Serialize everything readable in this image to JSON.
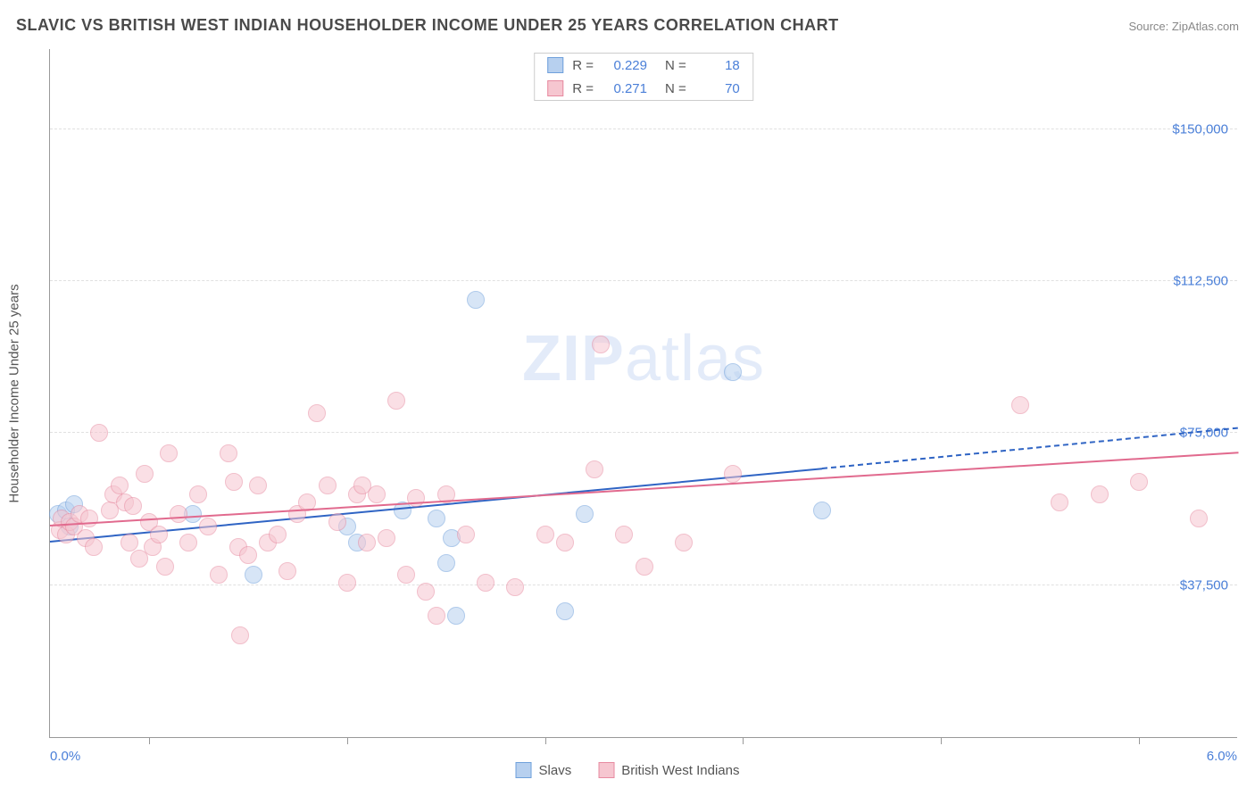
{
  "title": "SLAVIC VS BRITISH WEST INDIAN HOUSEHOLDER INCOME UNDER 25 YEARS CORRELATION CHART",
  "source": "Source: ZipAtlas.com",
  "watermark_bold": "ZIP",
  "watermark_light": "atlas",
  "ylabel": "Householder Income Under 25 years",
  "chart": {
    "type": "scatter",
    "background_color": "#ffffff",
    "grid_color": "#e0e0e0",
    "axis_color": "#999999",
    "text_color": "#555555",
    "value_color": "#4a7fd8",
    "xlim": [
      0.0,
      6.0
    ],
    "x_start_label": "0.0%",
    "x_end_label": "6.0%",
    "x_ticks": [
      0.5,
      1.5,
      2.5,
      3.5,
      4.5,
      5.5
    ],
    "ylim": [
      0,
      170000
    ],
    "y_gridlines": [
      {
        "value": 37500,
        "label": "$37,500"
      },
      {
        "value": 75000,
        "label": "$75,000"
      },
      {
        "value": 112500,
        "label": "$112,500"
      },
      {
        "value": 150000,
        "label": "$150,000"
      }
    ],
    "marker_radius": 10,
    "marker_opacity": 0.55,
    "series": [
      {
        "key": "slavs",
        "label": "Slavs",
        "fill": "#b7d0ef",
        "stroke": "#6fa0db",
        "line_color": "#2f64c4",
        "R": "0.229",
        "N": "18",
        "trend": {
          "x1": 0.0,
          "y1": 48000,
          "x2": 3.9,
          "y2": 66000,
          "x2_dash": 6.0,
          "y2_dash": 76000
        },
        "points": [
          [
            0.04,
            55000
          ],
          [
            0.08,
            56000
          ],
          [
            0.1,
            52000
          ],
          [
            0.12,
            57500
          ],
          [
            0.72,
            55000
          ],
          [
            1.03,
            40000
          ],
          [
            1.5,
            52000
          ],
          [
            1.55,
            48000
          ],
          [
            1.78,
            56000
          ],
          [
            1.95,
            54000
          ],
          [
            2.0,
            43000
          ],
          [
            2.03,
            49000
          ],
          [
            2.05,
            30000
          ],
          [
            2.15,
            108000
          ],
          [
            2.6,
            31000
          ],
          [
            2.7,
            55000
          ],
          [
            3.45,
            90000
          ],
          [
            3.9,
            56000
          ]
        ]
      },
      {
        "key": "bwi",
        "label": "British West Indians",
        "fill": "#f6c6d0",
        "stroke": "#e78aa0",
        "line_color": "#e16a8e",
        "R": "0.271",
        "N": "70",
        "trend": {
          "x1": 0.0,
          "y1": 52000,
          "x2": 6.0,
          "y2": 70000
        },
        "points": [
          [
            0.05,
            51000
          ],
          [
            0.06,
            54000
          ],
          [
            0.08,
            50000
          ],
          [
            0.1,
            53000
          ],
          [
            0.12,
            52000
          ],
          [
            0.15,
            55000
          ],
          [
            0.18,
            49000
          ],
          [
            0.2,
            54000
          ],
          [
            0.22,
            47000
          ],
          [
            0.25,
            75000
          ],
          [
            0.3,
            56000
          ],
          [
            0.32,
            60000
          ],
          [
            0.35,
            62000
          ],
          [
            0.38,
            58000
          ],
          [
            0.4,
            48000
          ],
          [
            0.42,
            57000
          ],
          [
            0.45,
            44000
          ],
          [
            0.48,
            65000
          ],
          [
            0.5,
            53000
          ],
          [
            0.52,
            47000
          ],
          [
            0.55,
            50000
          ],
          [
            0.58,
            42000
          ],
          [
            0.6,
            70000
          ],
          [
            0.65,
            55000
          ],
          [
            0.7,
            48000
          ],
          [
            0.75,
            60000
          ],
          [
            0.8,
            52000
          ],
          [
            0.85,
            40000
          ],
          [
            0.9,
            70000
          ],
          [
            0.93,
            63000
          ],
          [
            0.95,
            47000
          ],
          [
            0.96,
            25000
          ],
          [
            1.0,
            45000
          ],
          [
            1.05,
            62000
          ],
          [
            1.1,
            48000
          ],
          [
            1.15,
            50000
          ],
          [
            1.2,
            41000
          ],
          [
            1.25,
            55000
          ],
          [
            1.3,
            58000
          ],
          [
            1.35,
            80000
          ],
          [
            1.4,
            62000
          ],
          [
            1.45,
            53000
          ],
          [
            1.5,
            38000
          ],
          [
            1.55,
            60000
          ],
          [
            1.58,
            62000
          ],
          [
            1.6,
            48000
          ],
          [
            1.65,
            60000
          ],
          [
            1.7,
            49000
          ],
          [
            1.75,
            83000
          ],
          [
            1.8,
            40000
          ],
          [
            1.85,
            59000
          ],
          [
            1.9,
            36000
          ],
          [
            1.95,
            30000
          ],
          [
            2.0,
            60000
          ],
          [
            2.1,
            50000
          ],
          [
            2.2,
            38000
          ],
          [
            2.35,
            37000
          ],
          [
            2.5,
            50000
          ],
          [
            2.6,
            48000
          ],
          [
            2.75,
            66000
          ],
          [
            2.78,
            97000
          ],
          [
            2.9,
            50000
          ],
          [
            3.0,
            42000
          ],
          [
            3.2,
            48000
          ],
          [
            3.45,
            65000
          ],
          [
            4.9,
            82000
          ],
          [
            5.1,
            58000
          ],
          [
            5.3,
            60000
          ],
          [
            5.5,
            63000
          ],
          [
            5.8,
            54000
          ]
        ]
      }
    ],
    "legend_top": {
      "r_label": "R =",
      "n_label": "N ="
    }
  }
}
